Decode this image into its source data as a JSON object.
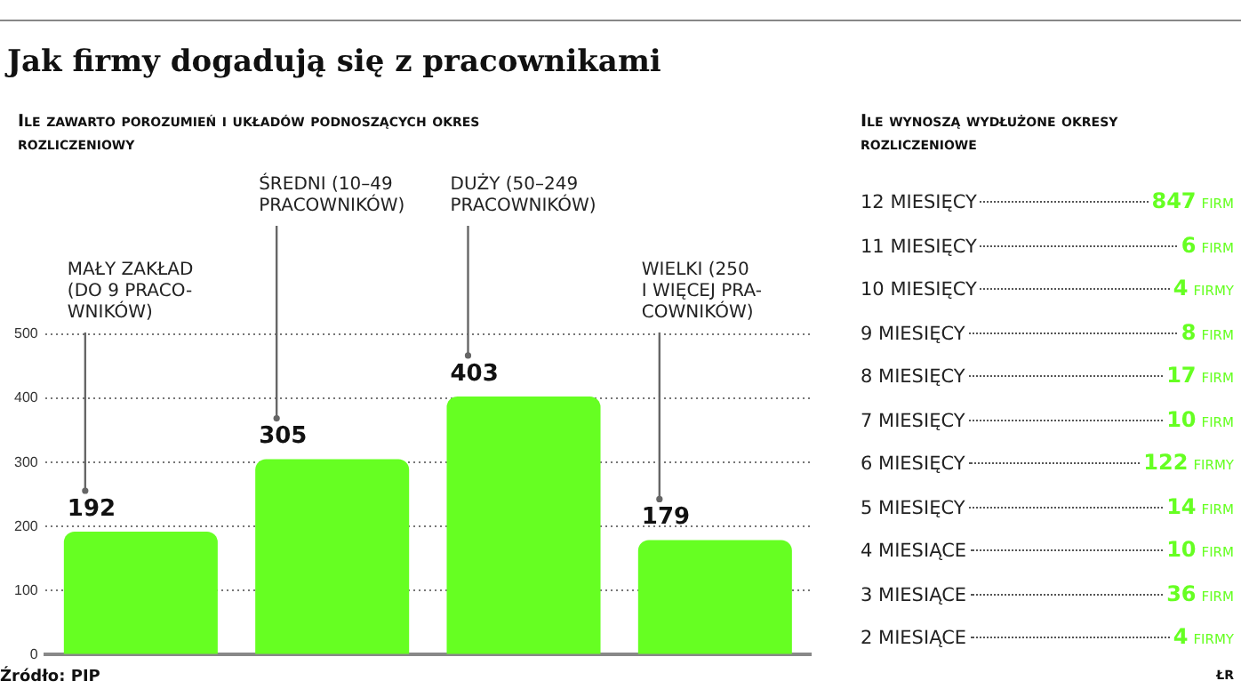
{
  "chart_data": [
    {
      "type": "bar",
      "title": "Jak firmy dogadują się z pracownikami",
      "subtitle": "Ile zawarto porozumień i układów podnoszących okres rozliczeniowy",
      "categories": [
        "MAŁY ZAKŁAD\n(DO 9 PRACO-\nWNIKÓW)",
        "ŚREDNI (10–49\nPRACOWNIKÓW)",
        "DUŻY (50–249\nPRACOWNIKÓW)",
        "WIELKI (250\nI WIĘCEJ PRA-\nCOWNIKÓW)"
      ],
      "values": [
        192,
        305,
        403,
        179
      ],
      "color": "#66ff22",
      "data_labels": true,
      "ylim": [
        0,
        500
      ],
      "yticks": [
        0,
        100,
        200,
        300,
        400,
        500
      ],
      "grid": "y",
      "legend": false,
      "annotations": [
        "Źródło: PIP"
      ]
    },
    {
      "type": "other",
      "subtitle": "Ile wynoszą wydłużone okresy rozliczeniowe",
      "categories": [
        "12 MIESIĘCY",
        "11 MIESIĘCY",
        "10 MIESIĘCY",
        "9 MIESIĘCY",
        "8 MIESIĘCY",
        "7 MIESIĘCY",
        "6 MIESIĘCY",
        "5 MIESIĘCY",
        "4 MIESIĄCE",
        "3 MIESIĄCE",
        "2 MIESIĄCE"
      ],
      "values": [
        847,
        6,
        4,
        8,
        17,
        10,
        122,
        14,
        10,
        36,
        4
      ],
      "value_labels": [
        "847 FIRM",
        "6 FIRM",
        "4 FIRMY",
        "8 FIRM",
        "17 FIRM",
        "10 FIRM",
        "122 FIRMY",
        "14 FIRM",
        "10 FIRM",
        "36 FIRM",
        "4 FIRMY"
      ],
      "color": "#66ff22",
      "annotations": [
        "ŁR"
      ]
    }
  ]
}
